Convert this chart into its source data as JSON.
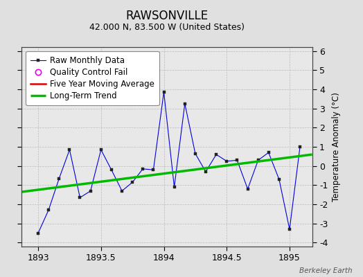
{
  "title": "RAWSONVILLE",
  "subtitle": "42.000 N, 83.500 W (United States)",
  "ylabel_right": "Temperature Anomaly (°C)",
  "watermark": "Berkeley Earth",
  "xlim": [
    1892.87,
    1895.18
  ],
  "ylim": [
    -4.2,
    6.2
  ],
  "xticks": [
    1893,
    1893.5,
    1894,
    1894.5,
    1895
  ],
  "yticks": [
    -4,
    -3,
    -2,
    -1,
    0,
    1,
    2,
    3,
    4,
    5,
    6
  ],
  "bg_color": "#e0e0e0",
  "plot_bg_color": "#e8e8e8",
  "raw_x": [
    1893.0,
    1893.083,
    1893.167,
    1893.25,
    1893.333,
    1893.417,
    1893.5,
    1893.583,
    1893.667,
    1893.75,
    1893.833,
    1893.917,
    1894.0,
    1894.083,
    1894.167,
    1894.25,
    1894.333,
    1894.417,
    1894.5,
    1894.583,
    1894.667,
    1894.75,
    1894.833,
    1894.917,
    1895.0,
    1895.083
  ],
  "raw_y": [
    -3.5,
    -2.3,
    -0.65,
    0.85,
    -1.65,
    -1.3,
    0.85,
    -0.2,
    -1.3,
    -0.85,
    -0.15,
    -0.2,
    3.85,
    -1.1,
    3.25,
    0.65,
    -0.3,
    0.6,
    0.25,
    0.3,
    -1.2,
    0.3,
    0.7,
    -0.7,
    -3.3,
    1.0
  ],
  "trend_x": [
    1892.87,
    1895.18
  ],
  "trend_y": [
    -1.35,
    0.6
  ],
  "raw_color": "#0000dd",
  "trend_color": "#00bb00",
  "ma_color": "#dd0000",
  "qc_color": "#ee00ee",
  "grid_color": "#bbbbbb",
  "title_fontsize": 12,
  "subtitle_fontsize": 9,
  "legend_fontsize": 8.5,
  "tick_fontsize": 9
}
